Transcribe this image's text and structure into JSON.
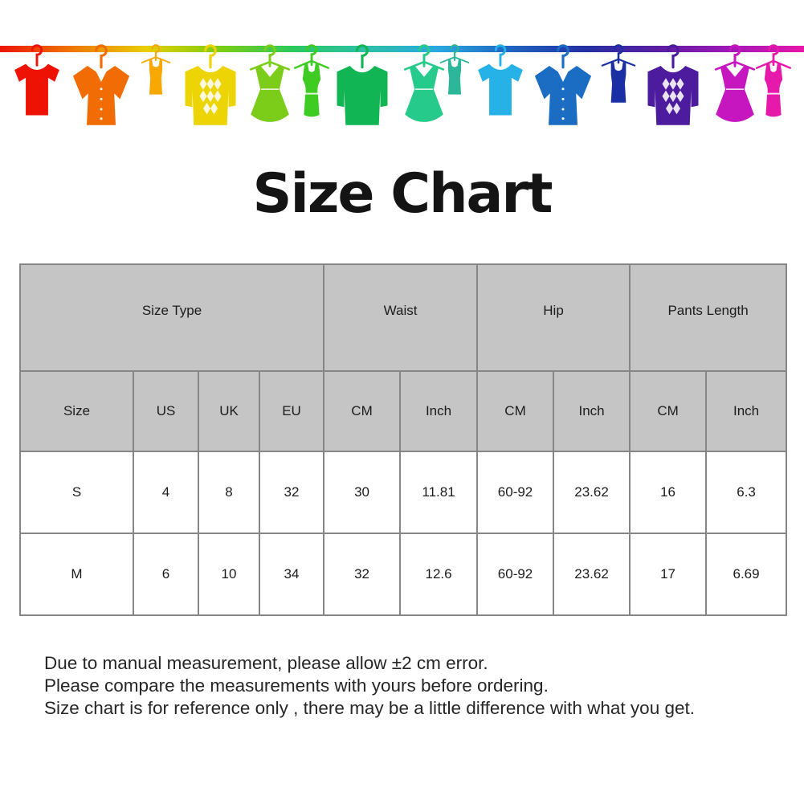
{
  "title": "Size Chart",
  "banner": {
    "rod_gradient": [
      "#ec1500",
      "#f07800",
      "#e8cf00",
      "#7ecc12",
      "#2bc95e",
      "#2cc0a8",
      "#29a8e0",
      "#1f63c0",
      "#2330a5",
      "#5a1da0",
      "#a117b8",
      "#e817a8"
    ],
    "items": [
      {
        "type": "tshirt",
        "name": "red-tshirt",
        "color": "#ee1205"
      },
      {
        "type": "shirt",
        "name": "orange-button-shirt",
        "color": "#f26c05"
      },
      {
        "type": "tank",
        "name": "amber-tank-top",
        "color": "#f8a800"
      },
      {
        "type": "argyle",
        "name": "yellow-argyle-sweater",
        "color": "#ecd405"
      },
      {
        "type": "dress",
        "name": "yellow-green-flared-dress",
        "color": "#7ccc1a"
      },
      {
        "type": "tankdress",
        "name": "green-tank-dress",
        "color": "#3ecb22"
      },
      {
        "type": "sweater",
        "name": "green-sweater",
        "color": "#12b554"
      },
      {
        "type": "dress",
        "name": "spring-green-flared-dress",
        "color": "#26ca8a"
      },
      {
        "type": "tank",
        "name": "teal-tank-top",
        "color": "#2cb69a"
      },
      {
        "type": "tshirt",
        "name": "cyan-tshirt",
        "color": "#26b2e7"
      },
      {
        "type": "shirt",
        "name": "blue-button-shirt",
        "color": "#1b6dc4"
      },
      {
        "type": "tank",
        "name": "navy-tank-top",
        "color": "#1b2fa5"
      },
      {
        "type": "argyle",
        "name": "purple-argyle-sweater",
        "color": "#4d1b9d"
      },
      {
        "type": "dress",
        "name": "magenta-flared-dress",
        "color": "#c516bf"
      },
      {
        "type": "tankdress",
        "name": "pink-tank-dress",
        "color": "#e619ab"
      }
    ]
  },
  "table": {
    "header_bg": "#c5c5c5",
    "border_color": "#868686",
    "group_headers": [
      {
        "label": "Size Type",
        "span": 4
      },
      {
        "label": "Waist",
        "span": 2
      },
      {
        "label": "Hip",
        "span": 2
      },
      {
        "label": "Pants Length",
        "span": 2
      }
    ],
    "column_headers": [
      "Size",
      "US",
      "UK",
      "EU",
      "CM",
      "Inch",
      "CM",
      "Inch",
      "CM",
      "Inch"
    ],
    "rows": [
      [
        "S",
        "4",
        "8",
        "32",
        "30",
        "11.81",
        "60-92",
        "23.62",
        "16",
        "6.3"
      ],
      [
        "M",
        "6",
        "10",
        "34",
        "32",
        "12.6",
        "60-92",
        "23.62",
        "17",
        "6.69"
      ]
    ]
  },
  "notes": [
    "Due to manual measurement, please allow ±2 cm error.",
    "Please compare the measurements with yours before ordering.",
    "Size chart is for reference only , there may be a little difference with what you get."
  ]
}
